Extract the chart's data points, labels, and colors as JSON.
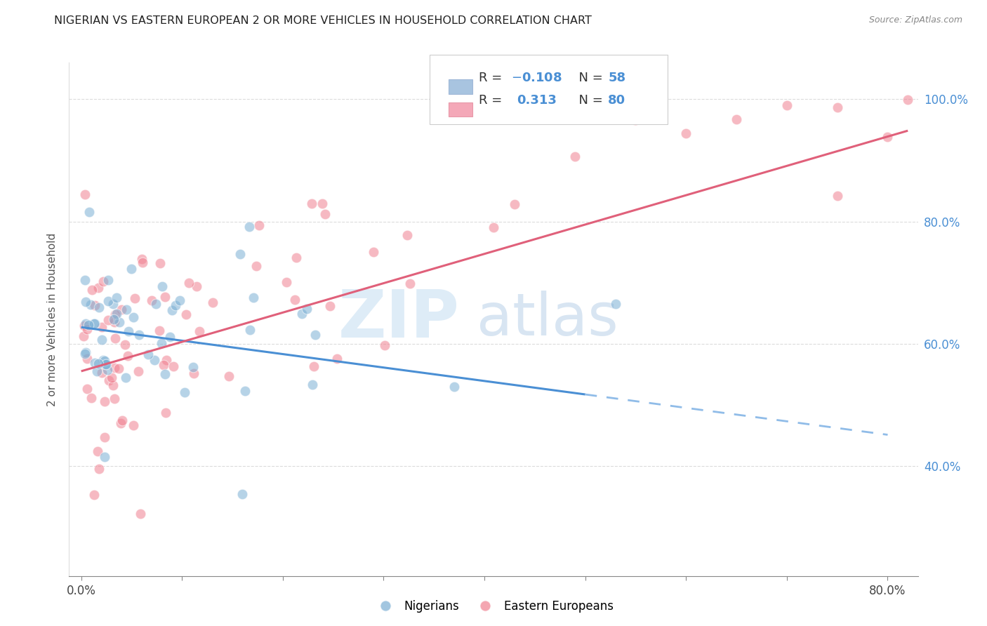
{
  "title": "NIGERIAN VS EASTERN EUROPEAN 2 OR MORE VEHICLES IN HOUSEHOLD CORRELATION CHART",
  "source": "Source: ZipAtlas.com",
  "ylabel": "2 or more Vehicles in Household",
  "nigerian_color": "#7bafd4",
  "eastern_color": "#f08090",
  "nigerian_R": -0.108,
  "nigerian_N": 58,
  "eastern_R": 0.313,
  "eastern_N": 80,
  "xmin": 0.0,
  "xmax": 0.8,
  "ymin": 0.22,
  "ymax": 1.06,
  "watermark_zip": "ZIP",
  "watermark_atlas": "atlas",
  "background_color": "#ffffff",
  "grid_color": "#cccccc",
  "nig_line_intercept": 0.627,
  "nig_line_slope": -0.22,
  "east_line_intercept": 0.555,
  "east_line_slope": 0.48,
  "nig_line_solid_end": 0.5,
  "nig_line_dash_end": 0.8,
  "legend_blue_r": "-0.108",
  "legend_blue_n": "58",
  "legend_pink_r": "0.313",
  "legend_pink_n": "80"
}
